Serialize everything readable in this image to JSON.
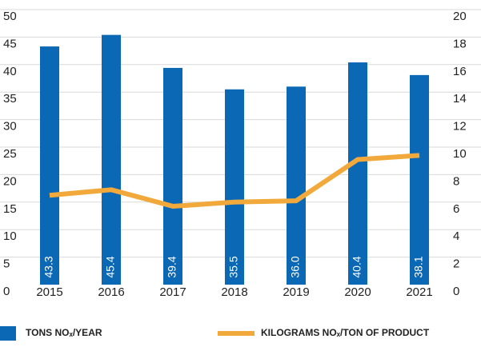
{
  "chart_data": {
    "type": "bar_line",
    "categories": [
      "2015",
      "2016",
      "2017",
      "2018",
      "2019",
      "2020",
      "2021"
    ],
    "series": [
      {
        "name": "TONS NOₓ/YEAR",
        "color": "#0a68b4",
        "type": "bar",
        "values": [
          43.3,
          45.4,
          39.4,
          35.5,
          36.0,
          40.4,
          38.1
        ],
        "value_labels": [
          "43.3",
          "45.4",
          "39.4",
          "35.5",
          "36.0",
          "40.4",
          "38.1"
        ]
      },
      {
        "name": "KILOGRAMS NOₓ/TON OF PRODUCT",
        "color": "#f2a93b",
        "type": "line",
        "axis": "y2",
        "values": [
          6.5,
          6.9,
          5.7,
          6.0,
          6.1,
          9.1,
          9.4
        ]
      }
    ],
    "ylim": [
      0,
      50
    ],
    "yticks": [
      0,
      5,
      10,
      15,
      20,
      25,
      30,
      35,
      40,
      45,
      50
    ],
    "y2lim": [
      0,
      20
    ],
    "y2ticks": [
      0,
      2,
      4,
      6,
      8,
      10,
      12,
      14,
      16,
      18,
      20
    ],
    "grid": true,
    "legend": "bottom"
  }
}
